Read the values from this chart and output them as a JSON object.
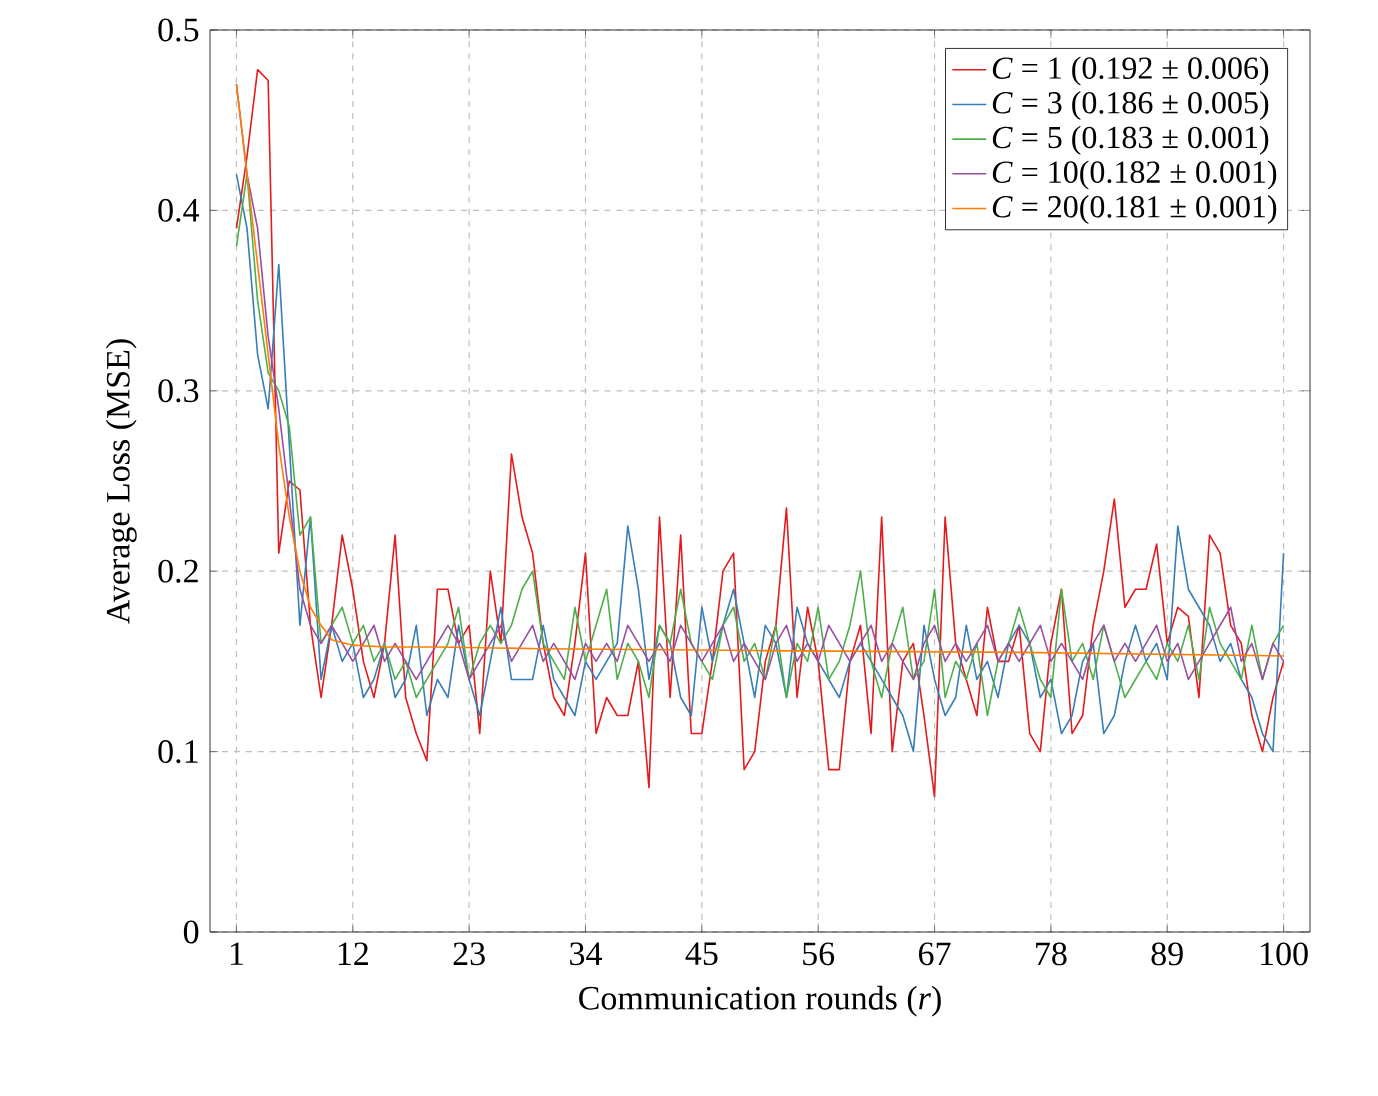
{
  "chart_data": {
    "type": "line",
    "xlabel": "Communication rounds (*r*)",
    "ylabel": "Average Loss (MSE)",
    "xlim": [
      -1.5,
      102.5
    ],
    "ylim": [
      0,
      0.5
    ],
    "xticks": [
      1,
      12,
      23,
      34,
      45,
      56,
      67,
      78,
      89,
      100
    ],
    "yticks": [
      0,
      0.1,
      0.2,
      0.3,
      0.4,
      0.5
    ],
    "grid": true,
    "x": [
      1,
      2,
      3,
      4,
      5,
      6,
      7,
      8,
      9,
      10,
      11,
      12,
      13,
      14,
      15,
      16,
      17,
      18,
      19,
      20,
      21,
      22,
      23,
      24,
      25,
      26,
      27,
      28,
      29,
      30,
      31,
      32,
      33,
      34,
      35,
      36,
      37,
      38,
      39,
      40,
      41,
      42,
      43,
      44,
      45,
      46,
      47,
      48,
      49,
      50,
      51,
      52,
      53,
      54,
      55,
      56,
      57,
      58,
      59,
      60,
      61,
      62,
      63,
      64,
      65,
      66,
      67,
      68,
      69,
      70,
      71,
      72,
      73,
      74,
      75,
      76,
      77,
      78,
      79,
      80,
      81,
      82,
      83,
      84,
      85,
      86,
      87,
      88,
      89,
      90,
      91,
      92,
      93,
      94,
      95,
      96,
      97,
      98,
      99,
      100
    ],
    "legend": "top right",
    "marker": "none",
    "line_style": "solid",
    "series": [
      {
        "name": "*C* = 1  (0.192 ± 0.006)",
        "color": "#e41a1c",
        "values": [
          0.39,
          0.43,
          0.478,
          0.472,
          0.21,
          0.25,
          0.245,
          0.17,
          0.13,
          0.17,
          0.22,
          0.19,
          0.15,
          0.13,
          0.16,
          0.22,
          0.13,
          0.11,
          0.095,
          0.19,
          0.19,
          0.16,
          0.17,
          0.11,
          0.2,
          0.16,
          0.265,
          0.23,
          0.21,
          0.16,
          0.13,
          0.12,
          0.16,
          0.21,
          0.11,
          0.13,
          0.12,
          0.12,
          0.15,
          0.08,
          0.23,
          0.13,
          0.22,
          0.11,
          0.11,
          0.15,
          0.2,
          0.21,
          0.09,
          0.1,
          0.15,
          0.17,
          0.235,
          0.13,
          0.18,
          0.15,
          0.09,
          0.09,
          0.15,
          0.17,
          0.11,
          0.23,
          0.1,
          0.15,
          0.16,
          0.12,
          0.075,
          0.23,
          0.16,
          0.14,
          0.12,
          0.18,
          0.15,
          0.15,
          0.17,
          0.11,
          0.1,
          0.16,
          0.19,
          0.11,
          0.12,
          0.17,
          0.2,
          0.24,
          0.18,
          0.19,
          0.19,
          0.215,
          0.16,
          0.18,
          0.175,
          0.13,
          0.22,
          0.21,
          0.17,
          0.16,
          0.12,
          0.1,
          0.13,
          0.15
        ]
      },
      {
        "name": "*C* = 3  (0.186 ± 0.005)",
        "color": "#377eb8",
        "values": [
          0.42,
          0.39,
          0.32,
          0.29,
          0.37,
          0.27,
          0.17,
          0.23,
          0.14,
          0.17,
          0.15,
          0.16,
          0.13,
          0.14,
          0.16,
          0.13,
          0.14,
          0.17,
          0.12,
          0.14,
          0.13,
          0.17,
          0.14,
          0.12,
          0.15,
          0.18,
          0.14,
          0.14,
          0.14,
          0.17,
          0.14,
          0.13,
          0.12,
          0.15,
          0.14,
          0.15,
          0.16,
          0.225,
          0.19,
          0.14,
          0.17,
          0.16,
          0.13,
          0.12,
          0.18,
          0.15,
          0.17,
          0.19,
          0.16,
          0.13,
          0.17,
          0.16,
          0.13,
          0.18,
          0.16,
          0.15,
          0.14,
          0.13,
          0.15,
          0.16,
          0.15,
          0.14,
          0.13,
          0.12,
          0.1,
          0.17,
          0.14,
          0.12,
          0.13,
          0.17,
          0.14,
          0.15,
          0.13,
          0.16,
          0.17,
          0.16,
          0.13,
          0.14,
          0.11,
          0.12,
          0.15,
          0.16,
          0.11,
          0.12,
          0.15,
          0.17,
          0.15,
          0.16,
          0.14,
          0.225,
          0.19,
          0.18,
          0.17,
          0.15,
          0.16,
          0.14,
          0.13,
          0.11,
          0.1,
          0.21
        ]
      },
      {
        "name": "*C* = 5  (0.183 ± 0.001)",
        "color": "#4daf4a",
        "values": [
          0.38,
          0.42,
          0.35,
          0.31,
          0.3,
          0.28,
          0.22,
          0.23,
          0.16,
          0.17,
          0.18,
          0.16,
          0.17,
          0.15,
          0.16,
          0.14,
          0.15,
          0.13,
          0.14,
          0.15,
          0.16,
          0.18,
          0.14,
          0.16,
          0.17,
          0.16,
          0.17,
          0.19,
          0.2,
          0.16,
          0.15,
          0.14,
          0.18,
          0.15,
          0.17,
          0.19,
          0.14,
          0.16,
          0.15,
          0.13,
          0.17,
          0.16,
          0.19,
          0.16,
          0.15,
          0.14,
          0.17,
          0.18,
          0.15,
          0.16,
          0.14,
          0.17,
          0.13,
          0.16,
          0.15,
          0.18,
          0.14,
          0.15,
          0.17,
          0.2,
          0.15,
          0.13,
          0.16,
          0.18,
          0.14,
          0.15,
          0.19,
          0.13,
          0.15,
          0.14,
          0.16,
          0.12,
          0.15,
          0.16,
          0.18,
          0.16,
          0.14,
          0.13,
          0.19,
          0.15,
          0.16,
          0.14,
          0.17,
          0.15,
          0.13,
          0.14,
          0.15,
          0.14,
          0.16,
          0.15,
          0.17,
          0.14,
          0.18,
          0.16,
          0.15,
          0.14,
          0.17,
          0.14,
          0.16,
          0.17
        ]
      },
      {
        "name": "*C* = 10(0.182 ± 0.001)",
        "color": "#984ea3",
        "values": [
          0.47,
          0.42,
          0.39,
          0.33,
          0.29,
          0.24,
          0.19,
          0.17,
          0.16,
          0.17,
          0.16,
          0.15,
          0.16,
          0.17,
          0.15,
          0.16,
          0.15,
          0.14,
          0.15,
          0.16,
          0.17,
          0.16,
          0.14,
          0.15,
          0.16,
          0.17,
          0.15,
          0.16,
          0.17,
          0.15,
          0.16,
          0.15,
          0.14,
          0.16,
          0.15,
          0.16,
          0.15,
          0.17,
          0.16,
          0.15,
          0.16,
          0.15,
          0.17,
          0.16,
          0.15,
          0.16,
          0.17,
          0.15,
          0.16,
          0.15,
          0.14,
          0.16,
          0.17,
          0.15,
          0.16,
          0.15,
          0.17,
          0.16,
          0.15,
          0.16,
          0.17,
          0.15,
          0.16,
          0.15,
          0.14,
          0.16,
          0.17,
          0.15,
          0.16,
          0.15,
          0.16,
          0.17,
          0.15,
          0.16,
          0.15,
          0.16,
          0.17,
          0.15,
          0.16,
          0.15,
          0.14,
          0.16,
          0.17,
          0.15,
          0.16,
          0.15,
          0.16,
          0.17,
          0.15,
          0.16,
          0.14,
          0.15,
          0.16,
          0.17,
          0.18,
          0.15,
          0.16,
          0.14,
          0.16,
          0.15
        ]
      },
      {
        "name": "*C* = 20(0.181 ± 0.001)",
        "color": "#ff7f00",
        "x": [
          1,
          2,
          3,
          4,
          5,
          6,
          7,
          8,
          9,
          10,
          12,
          15,
          20,
          30,
          50,
          75,
          100
        ],
        "values": [
          0.47,
          0.42,
          0.37,
          0.32,
          0.27,
          0.23,
          0.2,
          0.18,
          0.17,
          0.162,
          0.159,
          0.158,
          0.158,
          0.157,
          0.156,
          0.155,
          0.153
        ]
      }
    ]
  }
}
